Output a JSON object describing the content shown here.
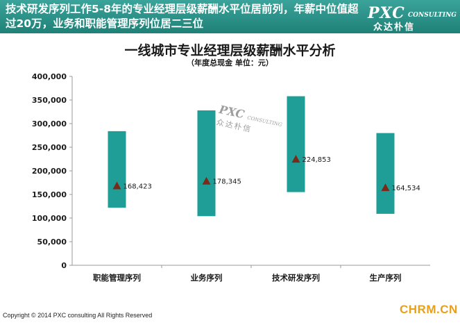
{
  "banner": {
    "headline": "技术研发序列工作5-8年的专业经理层级薪酬水平位居前列，年薪中位值超过20万，业务和职能管理序列位居二三位",
    "logo_text": "PXC",
    "logo_sub": "CONSULTING",
    "logo_cn": "众达朴信"
  },
  "watermark": {
    "text": "PXC",
    "sub": "CONSULTING",
    "cn": "众达朴信"
  },
  "footer": {
    "copyright": "Copyright © 2014 PXC consulting All Rights Reserved",
    "corner_logo": "CHRM.CN"
  },
  "colors": {
    "banner": "#2a9187",
    "bar": "#1e9e96",
    "marker": "#7a2a1a",
    "axis": "#9a9a9a"
  },
  "chart_data": {
    "type": "bar",
    "title": "一线城市专业经理层级薪酬水平分析",
    "subtitle": "（年度总现金 单位：元）",
    "categories": [
      "职能管理序列",
      "业务序列",
      "技术研发序列",
      "生产序列"
    ],
    "series": [
      {
        "range_low": [
          122000,
          104000,
          155000,
          109000
        ],
        "range_high": [
          284000,
          328000,
          358000,
          280000
        ]
      }
    ],
    "medians": [
      168423,
      178345,
      224853,
      164534
    ],
    "median_labels": [
      "168,423",
      "178,345",
      "224,853",
      "164,534"
    ],
    "ylim": [
      0,
      400000
    ],
    "yticks": [
      0,
      50000,
      100000,
      150000,
      200000,
      250000,
      300000,
      350000,
      400000
    ],
    "ytick_labels": [
      "0",
      "50,000",
      "100,000",
      "150,000",
      "200,000",
      "250,000",
      "300,000",
      "350,000",
      "400,000"
    ],
    "grid": false
  }
}
